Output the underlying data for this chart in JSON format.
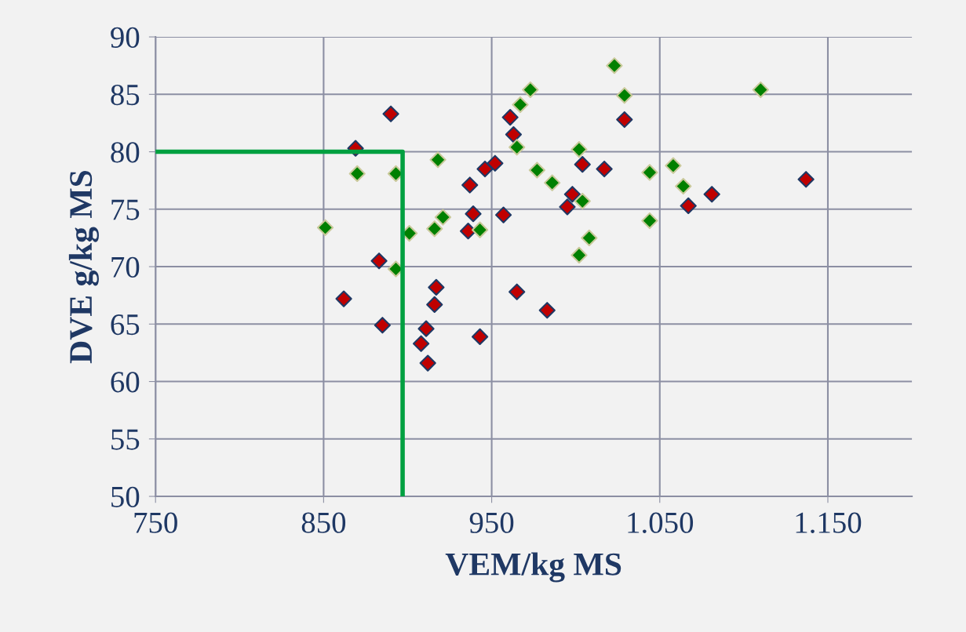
{
  "chart_data": {
    "type": "scatter",
    "xlabel": "VEM/kg MS",
    "ylabel": "DVE g/kg MS",
    "xlim": [
      750,
      1200
    ],
    "ylim": [
      50,
      90
    ],
    "xticks": [
      750,
      850,
      950,
      {
        "value": 1050,
        "label": "1.050"
      },
      {
        "value": 1150,
        "label": "1.150"
      }
    ],
    "yticks": [
      50,
      55,
      60,
      65,
      70,
      75,
      80,
      85,
      90
    ],
    "grid": true,
    "marker": "diamond",
    "series": [
      {
        "color": "#c00000",
        "x": [
          869,
          890,
          883,
          862,
          885,
          917,
          916,
          911,
          908,
          912,
          943,
          965,
          983,
          936,
          961,
          963,
          952,
          946,
          937,
          939,
          957,
          1029,
          1004,
          1017,
          998,
          995,
          1081,
          1067,
          1137
        ],
        "values": [
          80.3,
          83.3,
          70.5,
          67.2,
          64.9,
          68.2,
          66.7,
          64.6,
          63.3,
          61.6,
          63.9,
          67.8,
          66.2,
          73.1,
          83.0,
          81.5,
          79.0,
          78.5,
          77.1,
          74.6,
          74.5,
          82.8,
          78.9,
          78.5,
          76.3,
          75.2,
          76.3,
          75.3,
          77.6
        ]
      },
      {
        "color": "#008000",
        "x": [
          973,
          967,
          965,
          918,
          870,
          893,
          977,
          851,
          921,
          916,
          943,
          901,
          893,
          1023,
          1029,
          1110,
          1002,
          986,
          1004,
          1044,
          1058,
          1064,
          1044,
          1008,
          1002
        ],
        "values": [
          85.4,
          84.1,
          80.4,
          79.3,
          78.1,
          78.1,
          78.4,
          73.4,
          74.3,
          73.3,
          73.2,
          72.9,
          69.8,
          87.5,
          84.9,
          85.4,
          80.2,
          77.3,
          75.7,
          78.2,
          78.8,
          77.0,
          74.0,
          72.5,
          71.0
        ]
      },
      {
        "type": "line",
        "color": "#00a040",
        "marker": "none",
        "line_style": "solid",
        "x": [
          750,
          897,
          897
        ],
        "values": [
          80,
          80,
          50
        ]
      }
    ]
  }
}
